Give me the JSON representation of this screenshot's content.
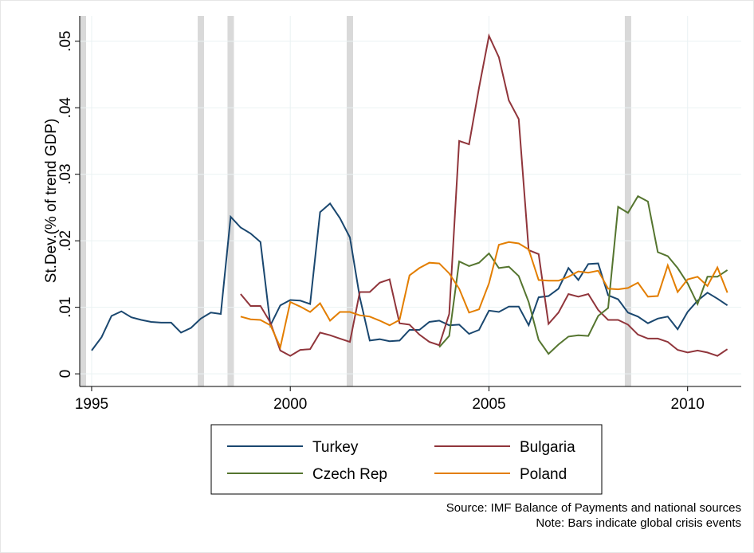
{
  "chart_data": {
    "type": "line",
    "y_label": "St.Dev.(% of trend GDP)",
    "source": "Source: IMF Balance of Payments and national sources",
    "note": "Note: Bars indicate global crisis events",
    "crisis_events": [
      1994.75,
      1997.75,
      1998.5,
      2001.5,
      2008.5
    ],
    "crisis_color": "#d9d9d9",
    "x": [
      1995,
      1995.25,
      1995.5,
      1995.75,
      1996,
      1996.25,
      1996.5,
      1996.75,
      1997,
      1997.25,
      1997.5,
      1997.75,
      1998,
      1998.25,
      1998.5,
      1998.75,
      1999,
      1999.25,
      1999.5,
      1999.75,
      2000,
      2000.25,
      2000.5,
      2000.75,
      2001,
      2001.25,
      2001.5,
      2001.75,
      2002,
      2002.25,
      2002.5,
      2002.75,
      2003,
      2003.25,
      2003.5,
      2003.75,
      2004,
      2004.25,
      2004.5,
      2004.75,
      2005,
      2005.25,
      2005.5,
      2005.75,
      2006,
      2006.25,
      2006.5,
      2006.75,
      2007,
      2007.25,
      2007.5,
      2007.75,
      2008,
      2008.25,
      2008.5,
      2008.75,
      2009,
      2009.25,
      2009.5,
      2009.75,
      2010,
      2010.25,
      2010.5,
      2010.75,
      2011
    ],
    "series": [
      {
        "name": "Turkey",
        "color": "#1a476f",
        "values": [
          0.0035,
          0.0055,
          0.0087,
          0.0094,
          0.0085,
          0.0081,
          0.0078,
          0.0077,
          0.0077,
          0.0062,
          0.0069,
          0.0083,
          0.0092,
          0.009,
          0.0236,
          0.022,
          0.0211,
          0.0198,
          0.0073,
          0.0103,
          0.0111,
          0.011,
          0.0105,
          0.0243,
          0.0256,
          0.0234,
          0.0205,
          0.0115,
          0.005,
          0.0052,
          0.0049,
          0.005,
          0.0066,
          0.0066,
          0.0078,
          0.008,
          0.0073,
          0.0074,
          0.006,
          0.0066,
          0.0095,
          0.0093,
          0.0101,
          0.0101,
          0.0073,
          0.0115,
          0.0117,
          0.0128,
          0.0159,
          0.0141,
          0.0165,
          0.0166,
          0.0118,
          0.0112,
          0.0092,
          0.0086,
          0.0076,
          0.0083,
          0.0086,
          0.0067,
          0.0093,
          0.011,
          0.0122,
          0.0113,
          0.0103
        ]
      },
      {
        "name": "Bulgaria",
        "color": "#90353b",
        "values": [
          null,
          null,
          null,
          null,
          null,
          null,
          null,
          null,
          null,
          null,
          null,
          null,
          null,
          null,
          null,
          0.012,
          0.0102,
          0.0102,
          0.0077,
          0.0035,
          0.0027,
          0.0036,
          0.0037,
          0.0062,
          0.0058,
          0.0053,
          0.0048,
          0.0123,
          0.0123,
          0.0137,
          0.0142,
          0.0076,
          0.0074,
          0.0059,
          0.0048,
          0.0043,
          0.009,
          0.035,
          0.0345,
          0.043,
          0.0508,
          0.0476,
          0.0411,
          0.0383,
          0.0186,
          0.018,
          0.0075,
          0.0092,
          0.012,
          0.0116,
          0.012,
          0.0096,
          0.0081,
          0.0081,
          0.0074,
          0.0059,
          0.0053,
          0.0053,
          0.0048,
          0.0036,
          0.0032,
          0.0035,
          0.0032,
          0.0027,
          0.0037
        ]
      },
      {
        "name": "Czech Rep",
        "color": "#55752f",
        "values": [
          null,
          null,
          null,
          null,
          null,
          null,
          null,
          null,
          null,
          null,
          null,
          null,
          null,
          null,
          null,
          null,
          null,
          null,
          null,
          null,
          null,
          null,
          null,
          null,
          null,
          null,
          null,
          null,
          null,
          null,
          null,
          null,
          null,
          null,
          null,
          0.004,
          0.0057,
          0.0169,
          0.0162,
          0.0167,
          0.0181,
          0.0159,
          0.0161,
          0.0147,
          0.0108,
          0.0051,
          0.003,
          0.0044,
          0.0056,
          0.0058,
          0.0057,
          0.0087,
          0.0099,
          0.0251,
          0.0242,
          0.0267,
          0.0259,
          0.0183,
          0.0177,
          0.0159,
          0.0136,
          0.0105,
          0.0146,
          0.0146,
          0.0156
        ]
      },
      {
        "name": "Poland",
        "color": "#e37e00",
        "values": [
          null,
          null,
          null,
          null,
          null,
          null,
          null,
          null,
          null,
          null,
          null,
          null,
          null,
          null,
          null,
          0.0086,
          0.0082,
          0.0081,
          0.0073,
          0.004,
          0.0108,
          0.0101,
          0.0093,
          0.0106,
          0.008,
          0.0093,
          0.0093,
          0.0088,
          0.0086,
          0.008,
          0.0073,
          0.0081,
          0.0148,
          0.0159,
          0.0167,
          0.0166,
          0.0151,
          0.0128,
          0.0092,
          0.0097,
          0.0136,
          0.0194,
          0.0198,
          0.0196,
          0.0187,
          0.0141,
          0.014,
          0.014,
          0.0146,
          0.0154,
          0.0152,
          0.0155,
          0.0128,
          0.0127,
          0.0129,
          0.0137,
          0.0116,
          0.0117,
          0.0163,
          0.0123,
          0.0142,
          0.0146,
          0.0132,
          0.016,
          0.0122
        ]
      }
    ],
    "xlim": [
      1994.7,
      2011.35
    ],
    "xticks": [
      1995,
      2000,
      2005,
      2010
    ],
    "ylim": [
      -0.0019,
      0.0538
    ],
    "yticks": [
      0,
      {
        "value": 0.01,
        "label": ".01"
      },
      {
        "value": 0.02,
        "label": ".02"
      },
      {
        "value": 0.03,
        "label": ".03"
      },
      {
        "value": 0.04,
        "label": ".04"
      },
      {
        "value": 0.05,
        "label": ".05"
      }
    ],
    "grid": true,
    "legend": "bottom"
  }
}
